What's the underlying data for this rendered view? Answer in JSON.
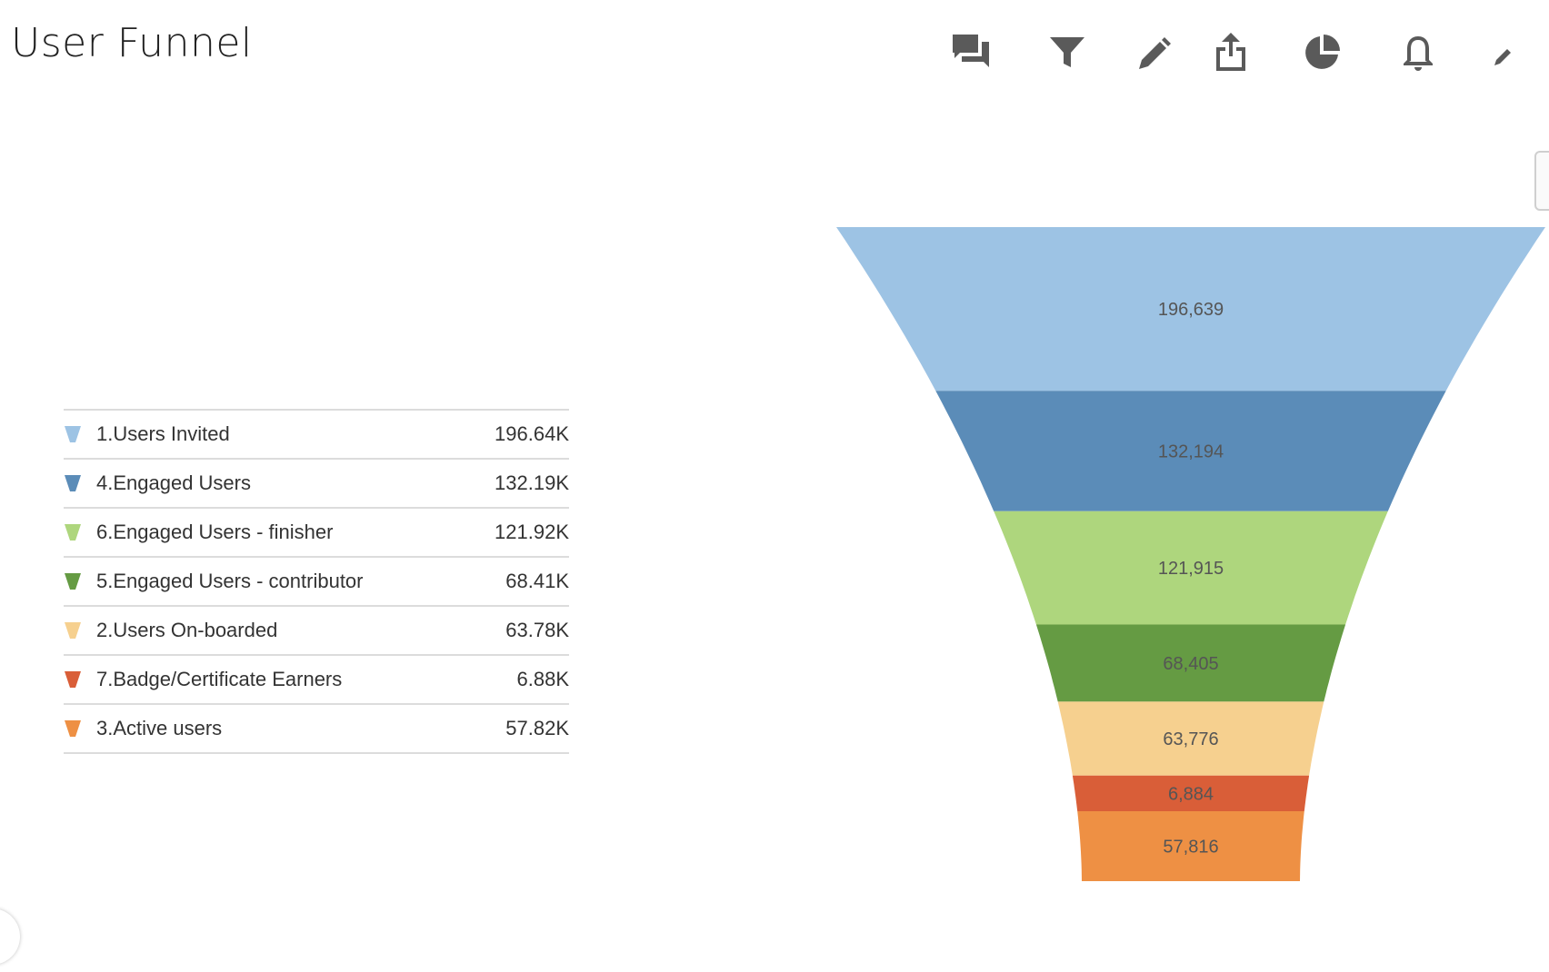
{
  "header": {
    "title": "User Funnel"
  },
  "toolbar": {
    "icons": [
      "comments-icon",
      "filter-icon",
      "pencil-icon",
      "share-icon",
      "pie-chart-icon",
      "bell-icon",
      "edit-icon"
    ]
  },
  "legend": {
    "items": [
      {
        "label": "1.Users Invited",
        "value": "196.64K",
        "color": "#9dc3e4"
      },
      {
        "label": "4.Engaged Users",
        "value": "132.19K",
        "color": "#5b8cb8"
      },
      {
        "label": "6.Engaged Users - finisher",
        "value": "121.92K",
        "color": "#aed67d"
      },
      {
        "label": "5.Engaged Users - contributor",
        "value": "68.41K",
        "color": "#659b43"
      },
      {
        "label": "2.Users On-boarded",
        "value": "63.78K",
        "color": "#f6d08f"
      },
      {
        "label": "7.Badge/Certificate Earners",
        "value": "6.88K",
        "color": "#d95e38"
      },
      {
        "label": "3.Active users",
        "value": "57.82K",
        "color": "#ee9044"
      }
    ]
  },
  "chart_data": {
    "type": "funnel",
    "categories": [
      "1.Users Invited",
      "4.Engaged Users",
      "6.Engaged Users - finisher",
      "5.Engaged Users - contributor",
      "2.Users On-boarded",
      "7.Badge/Certificate Earners",
      "3.Active users"
    ],
    "values": [
      196639,
      132194,
      121915,
      68405,
      63776,
      6884,
      57816
    ],
    "labels": [
      "196,639",
      "132,194",
      "121,915",
      "68,405",
      "63,776",
      "6,884",
      "57,816"
    ],
    "colors": [
      "#9dc3e4",
      "#5b8cb8",
      "#aed67d",
      "#659b43",
      "#f6d08f",
      "#d95e38",
      "#ee9044"
    ],
    "legend_position": "left"
  }
}
